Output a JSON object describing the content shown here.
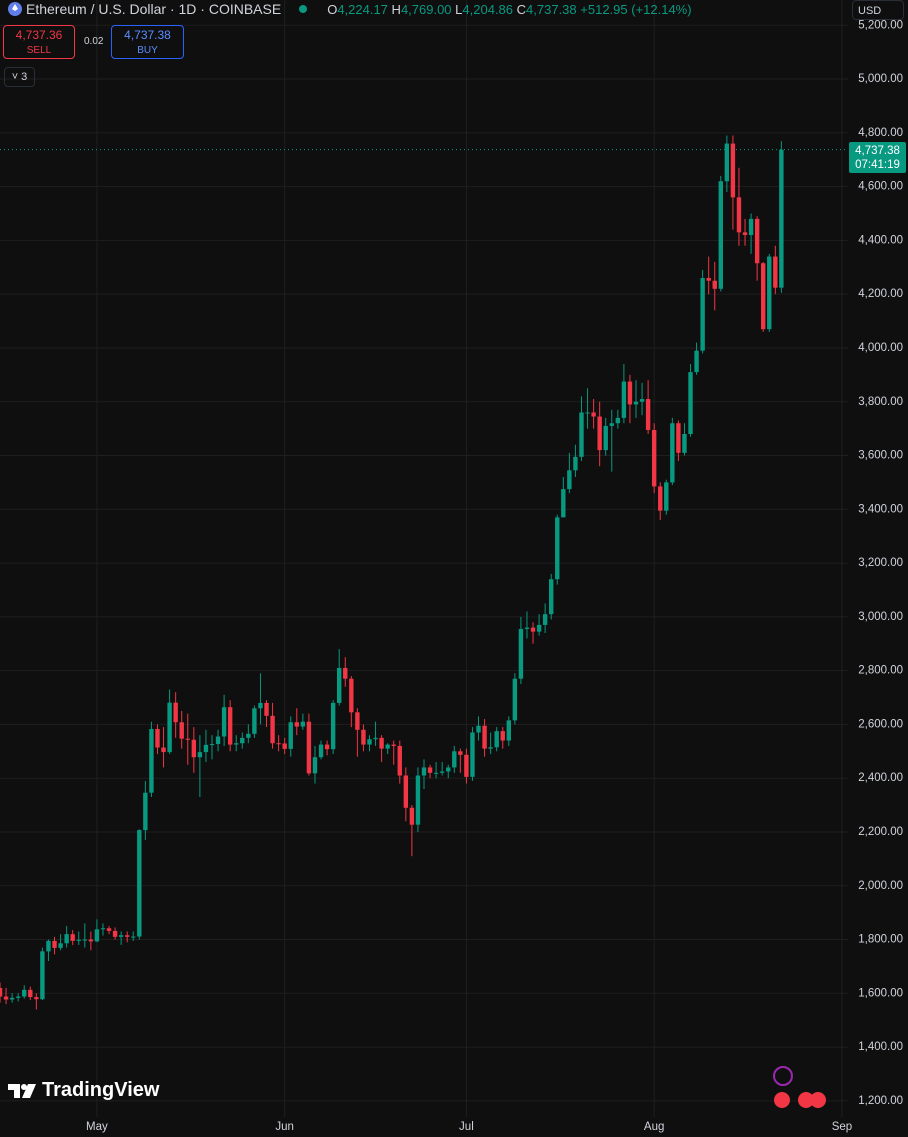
{
  "header": {
    "symbol": "Ethereum / U.S. Dollar · 1D · COINBASE",
    "o_label": "O",
    "o": "4,224.17",
    "h_label": "H",
    "h": "4,769.00",
    "l_label": "L",
    "l": "4,204.86",
    "c_label": "C",
    "c": "4,737.38",
    "change": "+512.95 (+12.14%)"
  },
  "trade": {
    "sell_price": "4,737.36",
    "sell": "SELL",
    "spread": "0.02",
    "buy_price": "4,737.38",
    "buy": "BUY",
    "indicators": "3"
  },
  "currency": "USD",
  "price_tag": {
    "price": "4,737.38",
    "countdown": "07:41:19"
  },
  "logo": "TradingView",
  "chart_data": {
    "type": "candlestick",
    "up_color": "#089981",
    "down_color": "#f23645",
    "grid": true,
    "xlim": [
      0,
      140
    ],
    "xticks": [
      {
        "value": 16,
        "label": "May"
      },
      {
        "value": 47,
        "label": "Jun"
      },
      {
        "value": 77,
        "label": "Jul"
      },
      {
        "value": 108,
        "label": "Aug"
      },
      {
        "value": 139,
        "label": "Sep"
      }
    ],
    "ylim": [
      1140,
      5294
    ],
    "yticks": [
      {
        "value": 1200,
        "label": "1,200.00"
      },
      {
        "value": 1400,
        "label": "1,400.00"
      },
      {
        "value": 1600,
        "label": "1,600.00"
      },
      {
        "value": 1800,
        "label": "1,800.00"
      },
      {
        "value": 2000,
        "label": "2,000.00"
      },
      {
        "value": 2200,
        "label": "2,200.00"
      },
      {
        "value": 2400,
        "label": "2,400.00"
      },
      {
        "value": 2600,
        "label": "2,600.00"
      },
      {
        "value": 2800,
        "label": "2,800.00"
      },
      {
        "value": 3000,
        "label": "3,000.00"
      },
      {
        "value": 3200,
        "label": "3,200.00"
      },
      {
        "value": 3400,
        "label": "3,400.00"
      },
      {
        "value": 3600,
        "label": "3,600.00"
      },
      {
        "value": 3800,
        "label": "3,800.00"
      },
      {
        "value": 4000,
        "label": "4,000.00"
      },
      {
        "value": 4200,
        "label": "4,200.00"
      },
      {
        "value": 4400,
        "label": "4,400.00"
      },
      {
        "value": 4600,
        "label": "4,600.00"
      },
      {
        "value": 4800,
        "label": "4,800.00"
      },
      {
        "value": 5000,
        "label": "5,000.00"
      },
      {
        "value": 5200,
        "label": "5,200.00"
      }
    ],
    "open": [
      1620,
      1588,
      1577,
      1583,
      1588,
      1613,
      1586,
      1578,
      1756,
      1795,
      1769,
      1786,
      1820,
      1795,
      1799,
      1800,
      1793,
      1838,
      1842,
      1832,
      1810,
      1816,
      1810,
      1811,
      2207,
      2346,
      2583,
      2514,
      2497,
      2681,
      2608,
      2547,
      2543,
      2478,
      2497,
      2524,
      2527,
      2555,
      2664,
      2525,
      2530,
      2550,
      2565,
      2660,
      2680,
      2632,
      2530,
      2529,
      2509,
      2608,
      2592,
      2610,
      2418,
      2478,
      2525,
      2508,
      2680,
      2810,
      2770,
      2645,
      2580,
      2525,
      2545,
      2550,
      2510,
      2525,
      2520,
      2410,
      2290,
      2227,
      2410,
      2440,
      2420,
      2420,
      2425,
      2440,
      2500,
      2487,
      2405,
      2570,
      2595,
      2510,
      2515,
      2575,
      2540,
      2615,
      2770,
      2955,
      2960,
      2945,
      2970,
      3010,
      3140,
      3370,
      3475,
      3545,
      3595,
      3760,
      3760,
      3745,
      3620,
      3710,
      3720,
      3740,
      3875,
      3790,
      3800,
      3810,
      3695,
      3485,
      3395,
      3500,
      3720,
      3610,
      3680,
      3910,
      3990,
      4260,
      4250,
      4220,
      4620,
      4760,
      4560,
      4430,
      4420,
      4480,
      4315,
      4070,
      4340,
      4224.17
    ],
    "high": [
      1640,
      1620,
      1600,
      1600,
      1630,
      1625,
      1600,
      1770,
      1800,
      1810,
      1820,
      1850,
      1835,
      1830,
      1860,
      1830,
      1875,
      1860,
      1850,
      1845,
      1830,
      1830,
      1830,
      2210,
      2390,
      2610,
      2600,
      2590,
      2730,
      2720,
      2650,
      2640,
      2590,
      2560,
      2580,
      2560,
      2580,
      2710,
      2690,
      2560,
      2570,
      2600,
      2670,
      2790,
      2690,
      2680,
      2560,
      2550,
      2630,
      2660,
      2640,
      2640,
      2520,
      2540,
      2540,
      2690,
      2880,
      2850,
      2780,
      2660,
      2600,
      2560,
      2610,
      2560,
      2530,
      2540,
      2540,
      2440,
      2300,
      2440,
      2470,
      2450,
      2460,
      2460,
      2450,
      2520,
      2510,
      2510,
      2590,
      2630,
      2620,
      2570,
      2590,
      2590,
      2630,
      2790,
      3000,
      3020,
      2980,
      3010,
      3050,
      3160,
      3380,
      3520,
      3610,
      3640,
      3820,
      3850,
      3810,
      3800,
      3740,
      3770,
      3770,
      3940,
      3900,
      3880,
      3870,
      3880,
      3720,
      3500,
      3510,
      3740,
      3730,
      3720,
      3940,
      4020,
      4290,
      4340,
      4320,
      4640,
      4790,
      4790,
      4670,
      4480,
      4500,
      4490,
      4320,
      4350,
      4380,
      4769
    ],
    "low": [
      1565,
      1560,
      1565,
      1570,
      1580,
      1575,
      1540,
      1575,
      1720,
      1745,
      1760,
      1770,
      1780,
      1780,
      1770,
      1760,
      1790,
      1815,
      1820,
      1800,
      1780,
      1790,
      1795,
      1800,
      2170,
      2330,
      2490,
      2440,
      2490,
      2550,
      2510,
      2450,
      2420,
      2330,
      2460,
      2470,
      2500,
      2520,
      2500,
      2500,
      2510,
      2530,
      2550,
      2600,
      2590,
      2510,
      2500,
      2490,
      2480,
      2560,
      2580,
      2410,
      2380,
      2470,
      2485,
      2490,
      2670,
      2740,
      2590,
      2480,
      2500,
      2500,
      2520,
      2460,
      2490,
      2450,
      2380,
      2240,
      2110,
      2200,
      2360,
      2400,
      2400,
      2410,
      2400,
      2420,
      2420,
      2380,
      2390,
      2540,
      2480,
      2490,
      2500,
      2510,
      2520,
      2600,
      2750,
      2920,
      2900,
      2930,
      2940,
      2990,
      3120,
      3370,
      3460,
      3520,
      3580,
      3700,
      3700,
      3560,
      3600,
      3540,
      3700,
      3720,
      3720,
      3740,
      3750,
      3680,
      3460,
      3360,
      3380,
      3490,
      3580,
      3600,
      3670,
      3900,
      3980,
      4200,
      4140,
      4210,
      4580,
      4440,
      4380,
      4380,
      4350,
      4250,
      4060,
      4060,
      4200,
      4204.86
    ],
    "close": [
      1588,
      1577,
      1583,
      1588,
      1613,
      1586,
      1578,
      1756,
      1795,
      1769,
      1786,
      1820,
      1795,
      1799,
      1800,
      1793,
      1838,
      1842,
      1832,
      1810,
      1816,
      1810,
      1811,
      2207,
      2346,
      2583,
      2514,
      2497,
      2681,
      2608,
      2547,
      2543,
      2478,
      2497,
      2524,
      2527,
      2555,
      2664,
      2525,
      2530,
      2550,
      2565,
      2660,
      2680,
      2632,
      2530,
      2529,
      2509,
      2608,
      2592,
      2610,
      2418,
      2478,
      2525,
      2508,
      2680,
      2810,
      2770,
      2645,
      2580,
      2525,
      2545,
      2550,
      2510,
      2525,
      2520,
      2410,
      2290,
      2227,
      2410,
      2440,
      2420,
      2420,
      2425,
      2440,
      2500,
      2487,
      2405,
      2570,
      2595,
      2510,
      2515,
      2575,
      2540,
      2615,
      2770,
      2955,
      2960,
      2945,
      2970,
      3010,
      3140,
      3370,
      3475,
      3545,
      3595,
      3760,
      3760,
      3745,
      3620,
      3710,
      3720,
      3740,
      3875,
      3790,
      3800,
      3810,
      3695,
      3485,
      3395,
      3500,
      3720,
      3610,
      3680,
      3910,
      3990,
      4260,
      4250,
      4220,
      4620,
      4760,
      4560,
      4430,
      4420,
      4480,
      4315,
      4070,
      4340,
      4224.17,
      4737.38
    ]
  }
}
